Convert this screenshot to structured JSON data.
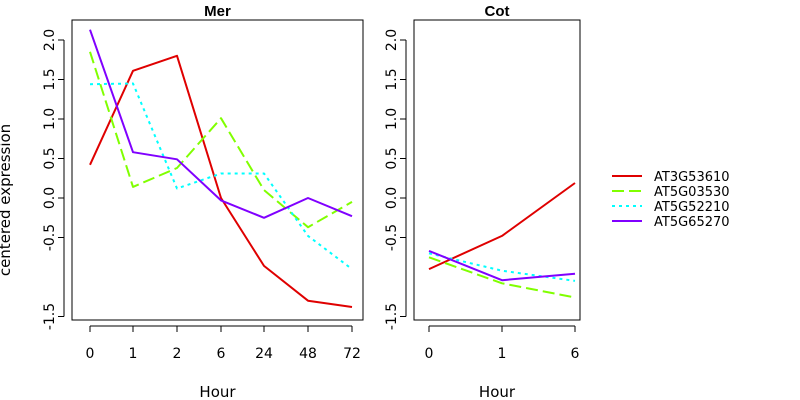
{
  "chart_data": [
    {
      "type": "line",
      "title": "Mer",
      "xlabel": "Hour",
      "ylabel": "centered expression",
      "categories": [
        "0",
        "1",
        "2",
        "6",
        "24",
        "48",
        "72"
      ],
      "ylim": [
        -1.5,
        2.2
      ],
      "yticks": [
        "-1.5",
        "-0.5",
        "0.0",
        "0.5",
        "1.0",
        "1.5",
        "2.0"
      ],
      "series": [
        {
          "name": "AT3G53610",
          "values": [
            0.42,
            1.61,
            1.8,
            0.0,
            -0.86,
            -1.3,
            -1.38
          ]
        },
        {
          "name": "AT5G03530",
          "values": [
            1.85,
            0.14,
            0.38,
            1.01,
            0.1,
            -0.37,
            -0.05
          ]
        },
        {
          "name": "AT5G52210",
          "values": [
            1.44,
            1.45,
            0.12,
            0.31,
            0.31,
            -0.48,
            -0.9
          ]
        },
        {
          "name": "AT5G65270",
          "values": [
            2.13,
            0.58,
            0.49,
            -0.03,
            -0.25,
            0.0,
            -0.23
          ]
        }
      ]
    },
    {
      "type": "line",
      "title": "Cot",
      "xlabel": "Hour",
      "ylabel": "",
      "categories": [
        "0",
        "1",
        "6"
      ],
      "ylim": [
        -1.5,
        2.2
      ],
      "yticks": [
        "-1.5",
        "-0.5",
        "0.0",
        "0.5",
        "1.0",
        "1.5",
        "2.0"
      ],
      "series": [
        {
          "name": "AT3G53610",
          "values": [
            -0.9,
            -0.48,
            0.19
          ]
        },
        {
          "name": "AT5G03530",
          "values": [
            -0.75,
            -1.08,
            -1.26
          ]
        },
        {
          "name": "AT5G52210",
          "values": [
            -0.7,
            -0.92,
            -1.05
          ]
        },
        {
          "name": "AT5G65270",
          "values": [
            -0.67,
            -1.04,
            -0.96
          ]
        }
      ]
    }
  ],
  "legend": {
    "position": "right",
    "entries": [
      "AT3G53610",
      "AT5G03530",
      "AT5G52210",
      "AT5G65270"
    ]
  },
  "colors": {
    "AT3G53610": "#DF0000",
    "AT5G03530": "#80FF00",
    "AT5G52210": "#00FFFF",
    "AT5G65270": "#8000FF"
  },
  "dash": {
    "AT3G53610": "",
    "AT5G03530": "12 5",
    "AT5G52210": "3 4",
    "AT5G65270": ""
  }
}
